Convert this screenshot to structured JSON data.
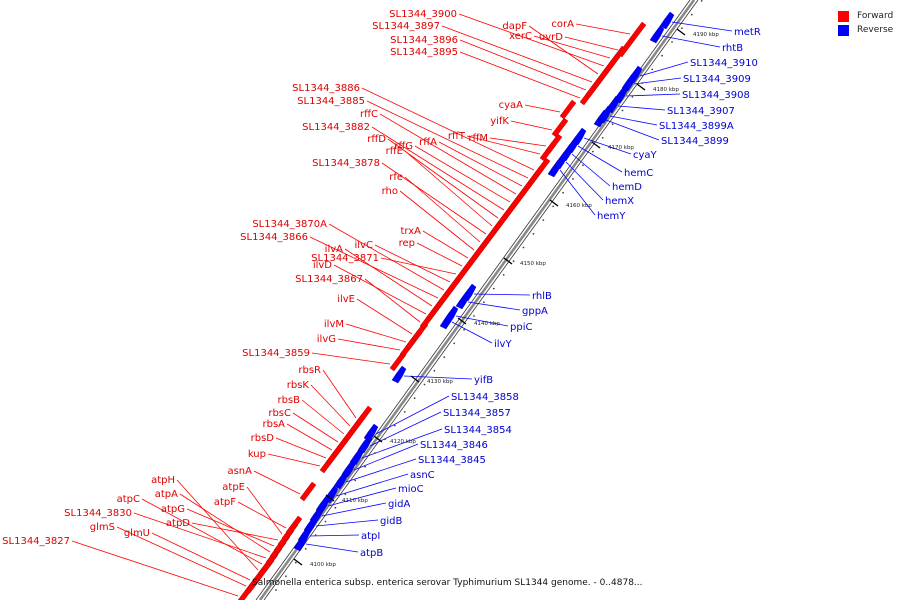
{
  "legend": {
    "forward_label": "Forward",
    "reverse_label": "Reverse",
    "forward_color": "#ff0000",
    "reverse_color": "#0000ff"
  },
  "caption": "Salmonella enterica subsp. enterica serovar Typhimurium SL1344 genome. - 0..4878...",
  "ticks": [
    "4100 kbp",
    "4110 kbp",
    "4120 kbp",
    "4130 kbp",
    "4140 kbp",
    "4150 kbp",
    "4160 kbp",
    "4170 kbp",
    "4180 kbp",
    "4190 kbp"
  ],
  "forward_genes": [
    "SL1344_3827",
    "glmS",
    "glmU",
    "atpH",
    "atpC",
    "SL1344_3830",
    "atpA",
    "atpG",
    "atpD",
    "atpE",
    "atpF",
    "asnA",
    "kup",
    "rbsD",
    "rbsA",
    "rbsC",
    "rbsB",
    "rbsK",
    "rbsR",
    "SL1344_3859",
    "ilvG",
    "ilvM",
    "ilvE",
    "SL1344_3867",
    "ilvD",
    "ilvA",
    "SL1344_3866",
    "SL1344_3870A",
    "ilvC",
    "SL1344_3871",
    "rep",
    "trxA",
    "rho",
    "rfe",
    "SL1344_3878",
    "rffE",
    "rffD",
    "SL1344_3882",
    "rffG",
    "rffC",
    "rffA",
    "SL1344_3885",
    "SL1344_3886",
    "rffT",
    "rffM",
    "yifK",
    "cyaA",
    "SL1344_3895",
    "SL1344_3896",
    "SL1344_3897",
    "dapF",
    "SL1344_3900",
    "xerC",
    "uvrD",
    "corA"
  ],
  "reverse_genes": [
    "atpB",
    "atpI",
    "gidB",
    "gidA",
    "mioC",
    "asnC",
    "SL1344_3845",
    "SL1344_3846",
    "SL1344_3854",
    "SL1344_3857",
    "SL1344_3858",
    "yifB",
    "ilvY",
    "ppiC",
    "gppA",
    "rhlB",
    "hemY",
    "hemX",
    "hemD",
    "hemC",
    "cyaY",
    "SL1344_3899",
    "SL1344_3899A",
    "SL1344_3907",
    "SL1344_3908",
    "SL1344_3909",
    "SL1344_3910",
    "rhtB",
    "metR"
  ]
}
